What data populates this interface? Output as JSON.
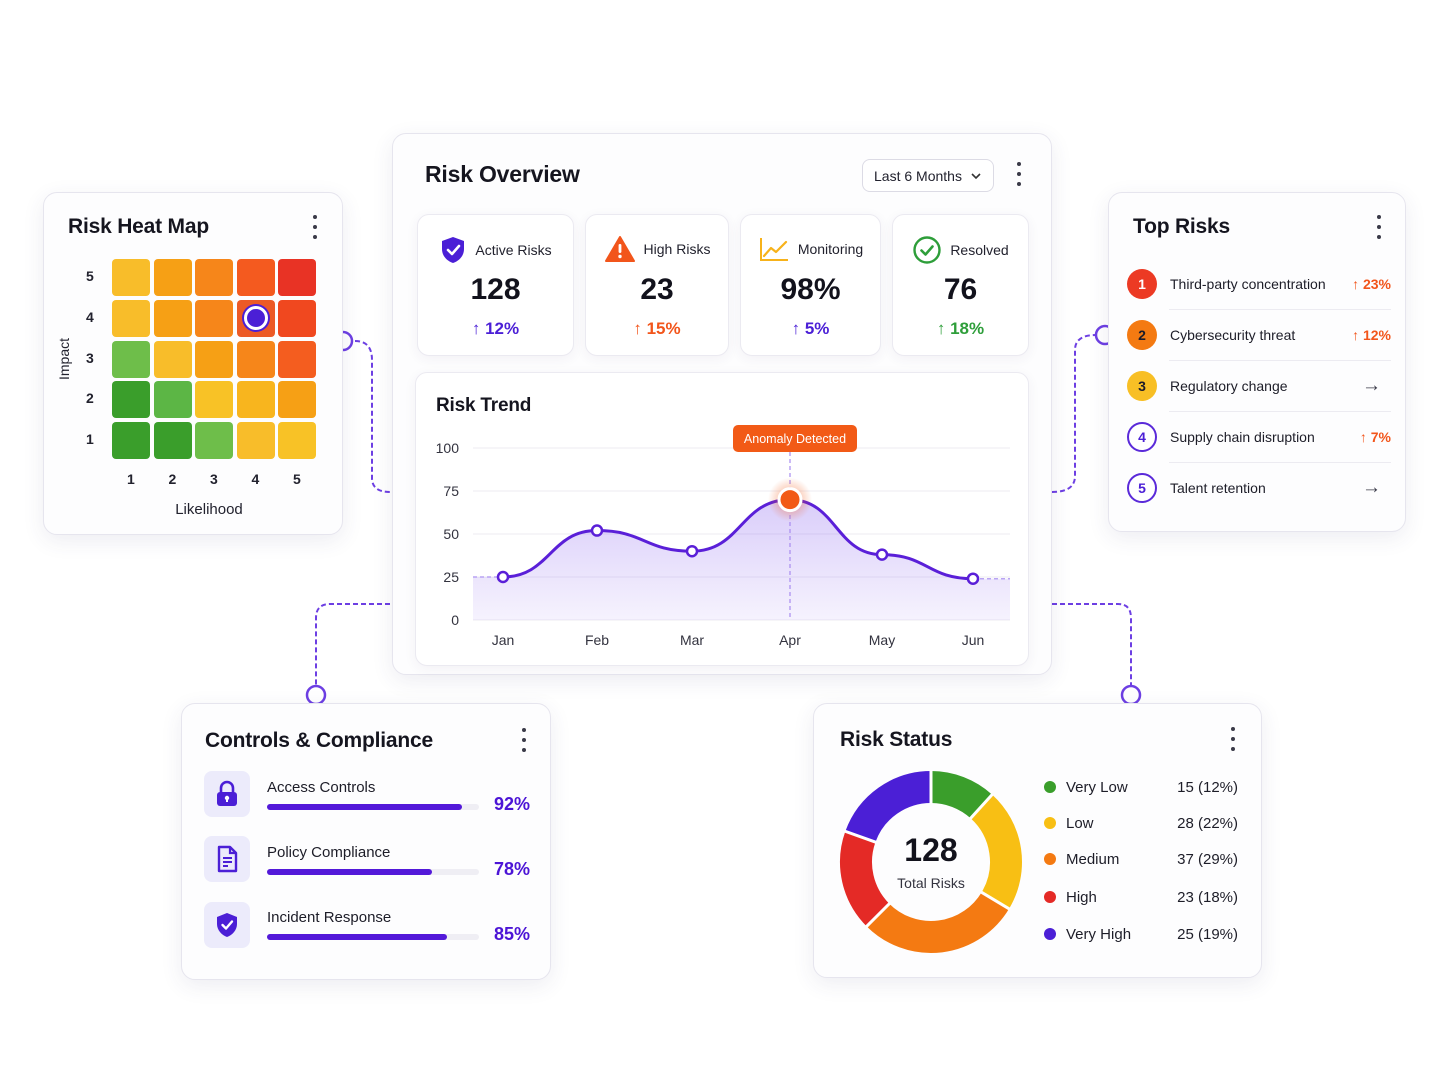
{
  "heat_map": {
    "title": "Risk Heat Map",
    "y_axis_label": "Impact",
    "x_axis_label": "Likelihood",
    "y_ticks": [
      "5",
      "4",
      "3",
      "2",
      "1"
    ],
    "x_ticks": [
      "1",
      "2",
      "3",
      "4",
      "5"
    ],
    "cell_colors": [
      [
        "#f8bd2a",
        "#f6a015",
        "#f6861a",
        "#f45a1f",
        "#e83325"
      ],
      [
        "#f8bd2a",
        "#f6a015",
        "#f6861a",
        "#ec5a26",
        "#f0481f"
      ],
      [
        "#6ebe4a",
        "#f8bd2a",
        "#f6a015",
        "#f6861a",
        "#f45d1f"
      ],
      [
        "#3a9e2b",
        "#5cb645",
        "#f8c226",
        "#f8b51e",
        "#f6a015"
      ],
      [
        "#3a9e2b",
        "#3a9e2b",
        "#6ebe4a",
        "#f8bd2a",
        "#f8c226"
      ]
    ],
    "selected_cell": {
      "impact": 4,
      "likelihood": 4
    }
  },
  "overview": {
    "title": "Risk Overview",
    "period_select": "Last 6 Months",
    "stats": [
      {
        "label": "Active Risks",
        "value": "128",
        "delta": "12%",
        "icon": "shield-check-icon",
        "color": "#4b1fd6"
      },
      {
        "label": "High Risks",
        "value": "23",
        "delta": "15%",
        "icon": "warning-triangle-icon",
        "color": "#f2551b"
      },
      {
        "label": "Monitoring",
        "value": "98%",
        "delta": "5%",
        "icon": "trend-line-icon",
        "color": "#4b1fd6"
      },
      {
        "label": "Resolved",
        "value": "76",
        "delta": "18%",
        "icon": "check-circle-icon",
        "color": "#2e9e3a"
      }
    ]
  },
  "trend": {
    "title": "Risk Trend",
    "annotation": "Anomaly Detected",
    "chart_data": {
      "type": "area",
      "categories": [
        "Jan",
        "Feb",
        "Mar",
        "Apr",
        "May",
        "Jun"
      ],
      "values": [
        25,
        52,
        40,
        70,
        38,
        24
      ],
      "highlight_index": 3,
      "ylim": [
        0,
        100
      ],
      "yticks": [
        100,
        75,
        50,
        25,
        0
      ],
      "xlabel": "",
      "ylabel": "",
      "grid": true,
      "line_color": "#5a1fd8",
      "highlight_color": "#f25a16"
    }
  },
  "top_risks": {
    "title": "Top Risks",
    "items": [
      {
        "rank": "1",
        "name": "Third-party concentration",
        "delta": "23%",
        "trend": "up",
        "color": "#ec3a24"
      },
      {
        "rank": "2",
        "name": "Cybersecurity threat",
        "delta": "12%",
        "trend": "up",
        "color": "#f47a12"
      },
      {
        "rank": "3",
        "name": "Regulatory change",
        "delta": "",
        "trend": "flat",
        "color": "#f8bf25"
      },
      {
        "rank": "4",
        "name": "Supply chain disruption",
        "delta": "7%",
        "trend": "up",
        "color": "#4b1fd6"
      },
      {
        "rank": "5",
        "name": "Talent retention",
        "delta": "",
        "trend": "flat",
        "color": "#4b1fd6"
      }
    ]
  },
  "compliance": {
    "title": "Controls & Compliance",
    "items": [
      {
        "name": "Access Controls",
        "pct_label": "92%",
        "value": 92,
        "icon": "lock-icon"
      },
      {
        "name": "Policy Compliance",
        "pct_label": "78%",
        "value": 78,
        "icon": "document-icon"
      },
      {
        "name": "Incident Response",
        "pct_label": "85%",
        "value": 85,
        "icon": "shield-check-icon"
      }
    ]
  },
  "status": {
    "title": "Risk Status",
    "total": "128",
    "total_label": "Total Risks",
    "chart_data": {
      "type": "pie",
      "donut": true,
      "slices": [
        {
          "name": "Very Low",
          "value": 15,
          "label": "15 (12%)",
          "color": "#3a9e2b"
        },
        {
          "name": "Low",
          "value": 28,
          "label": "28 (22%)",
          "color": "#f8bf14"
        },
        {
          "name": "Medium",
          "value": 37,
          "label": "37 (29%)",
          "color": "#f47a12"
        },
        {
          "name": "High",
          "value": 23,
          "label": "23 (18%)",
          "color": "#e42a26"
        },
        {
          "name": "Very High",
          "value": 25,
          "label": "25 (19%)",
          "color": "#4b1fd6"
        }
      ]
    }
  }
}
